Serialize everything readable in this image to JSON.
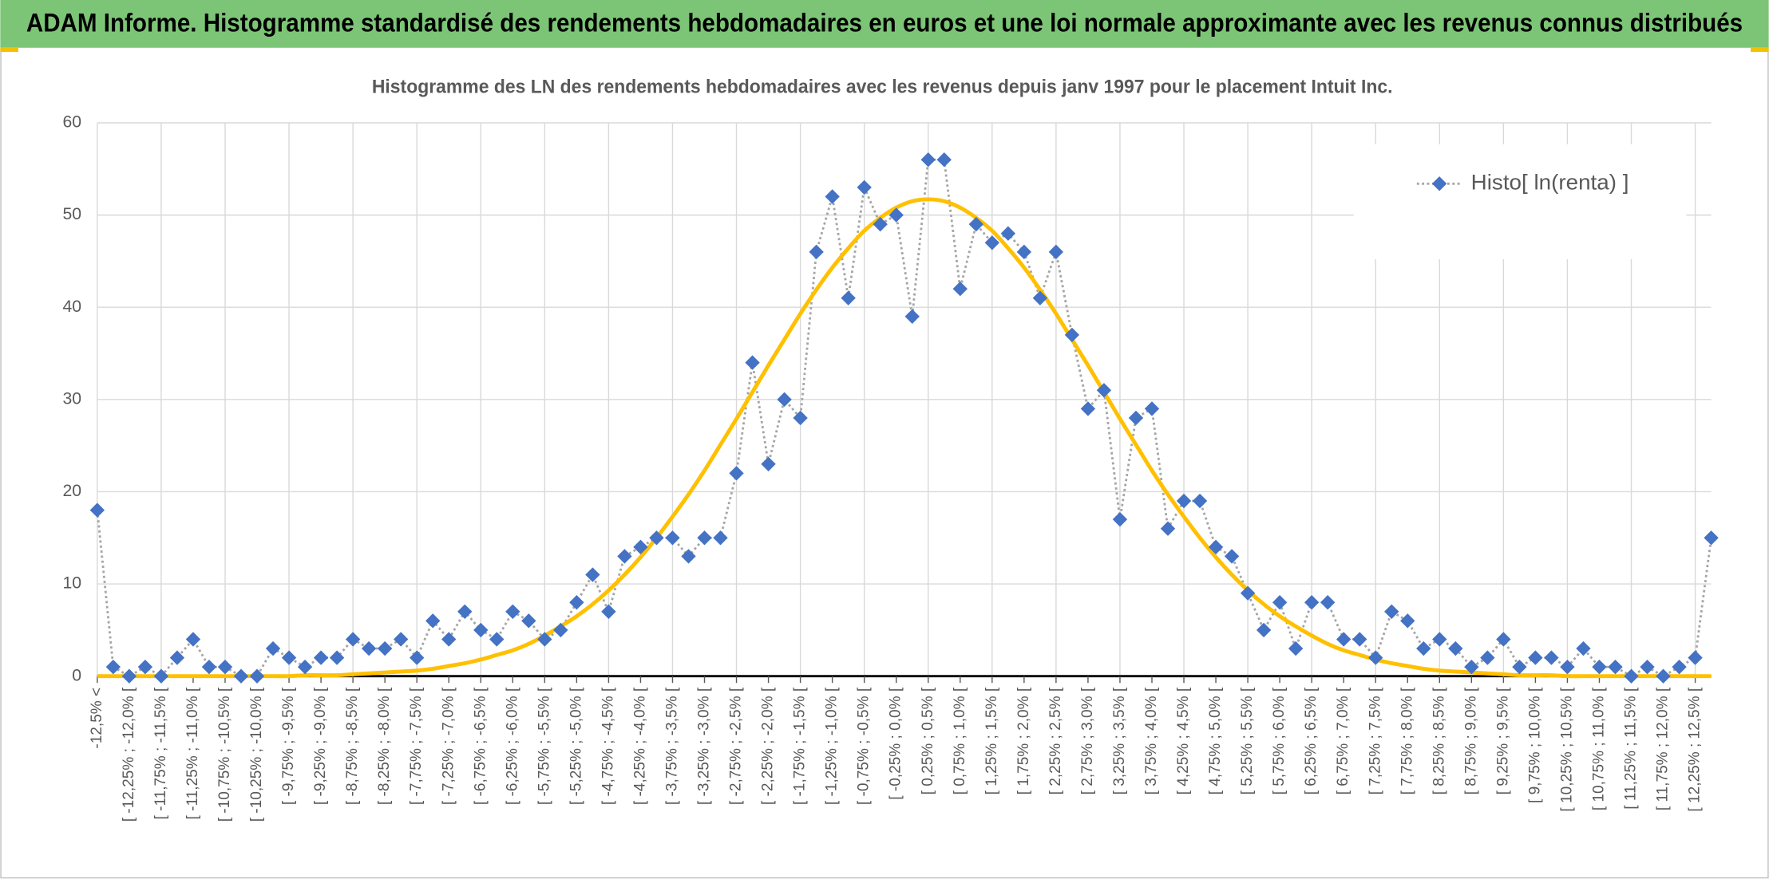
{
  "header": {
    "title": "ADAM Informe. Histogramme standardisé des rendements hebdomadaires en euros et une loi normale approximante avec les revenus connus distribués"
  },
  "chart_data": {
    "type": "line",
    "title": "Histogramme des LN des rendements hebdomadaires avec les revenus depuis janv 1997 pour le placement Intuit Inc.",
    "categories": [
      "-12,5% <",
      null,
      "[ -12,25% ; -12,0% [",
      null,
      "[ -11,75% ; -11,5% [",
      null,
      "[ -11,25% ; -11,0% [",
      null,
      "[ -10,75% ; -10,5% [",
      null,
      "[ -10,25% ; -10,0% [",
      null,
      "[ -9,75% ; -9,5% [",
      null,
      "[ -9,25% ; -9,0% [",
      null,
      "[ -8,75% ; -8,5% [",
      null,
      "[ -8,25% ; -8,0% [",
      null,
      "[ -7,75% ; -7,5% [",
      null,
      "[ -7,25% ; -7,0% [",
      null,
      "[ -6,75% ; -6,5% [",
      null,
      "[ -6,25% ; -6,0% [",
      null,
      "[ -5,75% ; -5,5% [",
      null,
      "[ -5,25% ; -5,0% [",
      null,
      "[ -4,75% ; -4,5% [",
      null,
      "[ -4,25% ; -4,0% [",
      null,
      "[ -3,75% ; -3,5% [",
      null,
      "[ -3,25% ; -3,0% [",
      null,
      "[ -2,75% ; -2,5% [",
      null,
      "[ -2,25% ; -2,0% [",
      null,
      "[ -1,75% ; -1,5% [",
      null,
      "[ -1,25% ; -1,0% [",
      null,
      "[ -0,75% ; -0,5% [",
      null,
      "[ -0,25% ; 0,0% [",
      null,
      "[ 0,25% ; 0,5% [",
      null,
      "[ 0,75% ; 1,0% [",
      null,
      "[ 1,25% ; 1,5% [",
      null,
      "[ 1,75% ; 2,0% [",
      null,
      "[ 2,25% ; 2,5% [",
      null,
      "[ 2,75% ; 3,0% [",
      null,
      "[ 3,25% ; 3,5% [",
      null,
      "[ 3,75% ; 4,0% [",
      null,
      "[ 4,25% ; 4,5% [",
      null,
      "[ 4,75% ; 5,0% [",
      null,
      "[ 5,25% ; 5,5% [",
      null,
      "[ 5,75% ; 6,0% [",
      null,
      "[ 6,25% ; 6,5% [",
      null,
      "[ 6,75% ; 7,0% [",
      null,
      "[ 7,25% ; 7,5% [",
      null,
      "[ 7,75% ; 8,0% [",
      null,
      "[ 8,25% ; 8,5% [",
      null,
      "[ 8,75% ; 9,0% [",
      null,
      "[ 9,25% ; 9,5% [",
      null,
      "[ 9,75% ; 10,0% [",
      null,
      "[ 10,25% ; 10,5% [",
      null,
      "[ 10,75% ; 11,0% [",
      null,
      "[ 11,25% ; 11,5% [",
      null,
      "[ 11,75% ; 12,0% [",
      null,
      "[ 12,25% ; 12,5% [",
      null
    ],
    "series": [
      {
        "name": "Histo[ ln(renta) ]",
        "color": "#4472c4",
        "line_color": "#a5a5a5",
        "line_style": "dotted",
        "marker": "diamond",
        "values": [
          18,
          1,
          0,
          1,
          0,
          2,
          4,
          1,
          1,
          0,
          0,
          3,
          2,
          1,
          2,
          2,
          4,
          3,
          3,
          4,
          2,
          6,
          4,
          7,
          5,
          4,
          7,
          6,
          4,
          5,
          8,
          11,
          7,
          13,
          14,
          15,
          15,
          13,
          15,
          15,
          22,
          34,
          23,
          30,
          28,
          46,
          52,
          41,
          53,
          49,
          50,
          39,
          56,
          56,
          42,
          49,
          47,
          48,
          46,
          41,
          46,
          37,
          29,
          31,
          17,
          28,
          29,
          16,
          19,
          19,
          14,
          13,
          9,
          5,
          8,
          3,
          8,
          8,
          4,
          4,
          2,
          7,
          6,
          3,
          4,
          3,
          1,
          2,
          4,
          1,
          2,
          2,
          1,
          3,
          1,
          1,
          0,
          1,
          0,
          1,
          2,
          15
        ]
      },
      {
        "color": "#ffc000",
        "line_color": "#ffc000",
        "line_style": "solid",
        "marker": "none",
        "smooth": true,
        "values": [
          0,
          0,
          0,
          0,
          0,
          0,
          0,
          0,
          0,
          0,
          0,
          0,
          0,
          0.1,
          0.1,
          0.1,
          0.2,
          0.3,
          0.4,
          0.5,
          0.6,
          0.8,
          1.1,
          1.4,
          1.8,
          2.3,
          2.8,
          3.5,
          4.4,
          5.4,
          6.5,
          7.8,
          9.3,
          11.0,
          12.9,
          15.0,
          17.3,
          19.7,
          22.3,
          25.1,
          27.9,
          30.8,
          33.7,
          36.5,
          39.3,
          41.9,
          44.3,
          46.4,
          48.3,
          49.7,
          50.8,
          51.5,
          51.7,
          51.5,
          50.8,
          49.7,
          48.3,
          46.4,
          44.3,
          41.9,
          39.3,
          36.5,
          33.7,
          30.8,
          27.9,
          25.1,
          22.3,
          19.7,
          17.3,
          15.0,
          12.9,
          11.0,
          9.3,
          7.8,
          6.5,
          5.4,
          4.4,
          3.5,
          2.8,
          2.3,
          1.8,
          1.4,
          1.1,
          0.8,
          0.6,
          0.5,
          0.4,
          0.3,
          0.2,
          0.1,
          0.1,
          0.1,
          0,
          0,
          0,
          0,
          0,
          0,
          0,
          0,
          0,
          0
        ]
      }
    ],
    "ylim": [
      0,
      60
    ],
    "yticks": [
      0,
      10,
      20,
      30,
      40,
      50,
      60
    ],
    "grid": true,
    "legend": "upper right"
  }
}
